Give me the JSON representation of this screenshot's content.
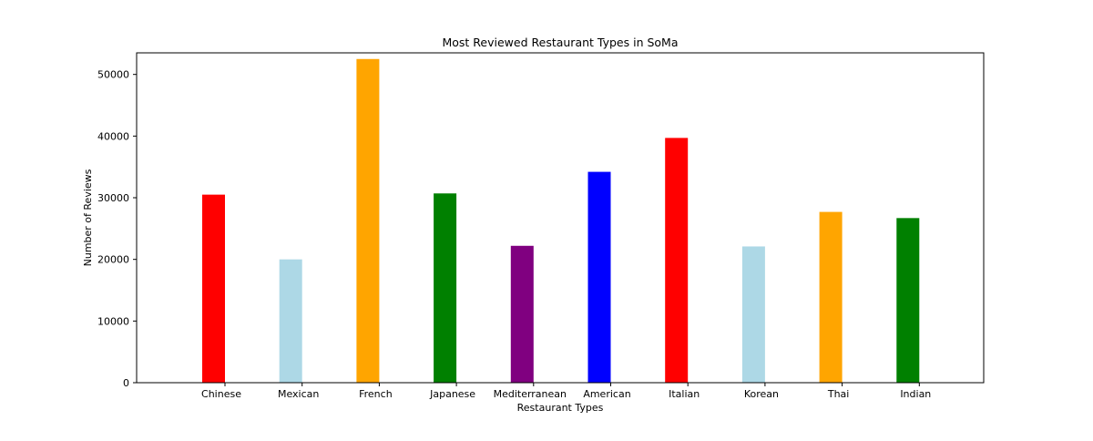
{
  "chart_data": {
    "type": "bar",
    "title": "Most Reviewed Restaurant Types in SoMa",
    "xlabel": "Restaurant Types",
    "ylabel": "Number of Reviews",
    "categories": [
      "Chinese",
      "Mexican",
      "French",
      "Japanese",
      "Mediterranean",
      "American",
      "Italian",
      "Korean",
      "Thai",
      "Indian"
    ],
    "values": [
      30500,
      20000,
      52500,
      30700,
      22200,
      34200,
      39700,
      22100,
      27700,
      26700
    ],
    "colors": [
      "#ff0000",
      "#add8e6",
      "#ffa500",
      "#008000",
      "#800080",
      "#0000ff",
      "#ff0000",
      "#add8e6",
      "#ffa500",
      "#008000"
    ],
    "ylim": [
      0,
      53500
    ],
    "yticks": [
      0,
      10000,
      20000,
      30000,
      40000,
      50000
    ],
    "ytick_labels": [
      "0",
      "10000",
      "20000",
      "30000",
      "40000",
      "50000"
    ],
    "grid": false,
    "legend": "none"
  }
}
